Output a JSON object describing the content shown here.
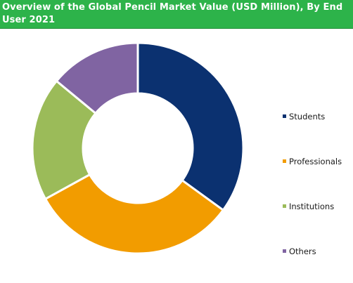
{
  "chart_data": {
    "type": "pie",
    "variant": "donut",
    "title": "Overview of the Global Pencil Market Value (USD Million), By End User 2021",
    "categories": [
      "Students",
      "Professionals",
      "Institutions",
      "Others"
    ],
    "values": [
      35,
      32,
      19,
      14
    ],
    "colors": [
      "#0b3170",
      "#f29c00",
      "#9bbb59",
      "#8064a2"
    ],
    "legend_position": "right"
  }
}
